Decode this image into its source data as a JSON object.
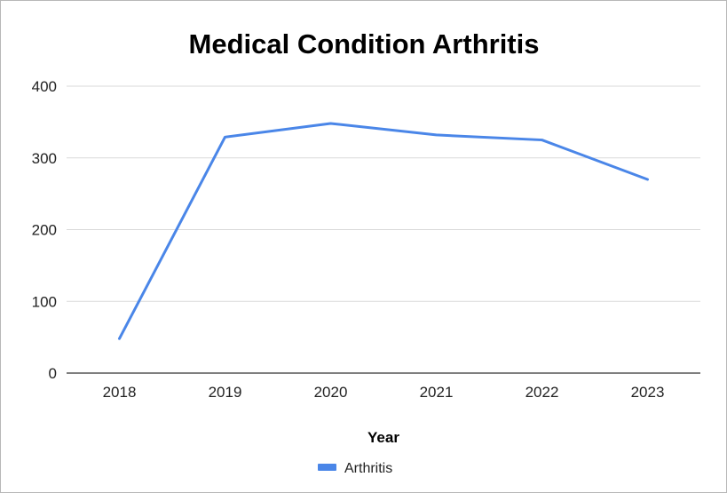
{
  "chart_data": {
    "type": "line",
    "title": "Medical Condition Arthritis",
    "xlabel": "Year",
    "ylabel": "",
    "categories": [
      "2018",
      "2019",
      "2020",
      "2021",
      "2022",
      "2023"
    ],
    "series": [
      {
        "name": "Arthritis",
        "values": [
          48,
          329,
          348,
          332,
          325,
          270
        ],
        "color": "#4a86e8"
      }
    ],
    "ylim": [
      0,
      400
    ],
    "yticks": [
      "0",
      "100",
      "200",
      "300",
      "400"
    ],
    "grid": true,
    "legend": "bottom"
  }
}
